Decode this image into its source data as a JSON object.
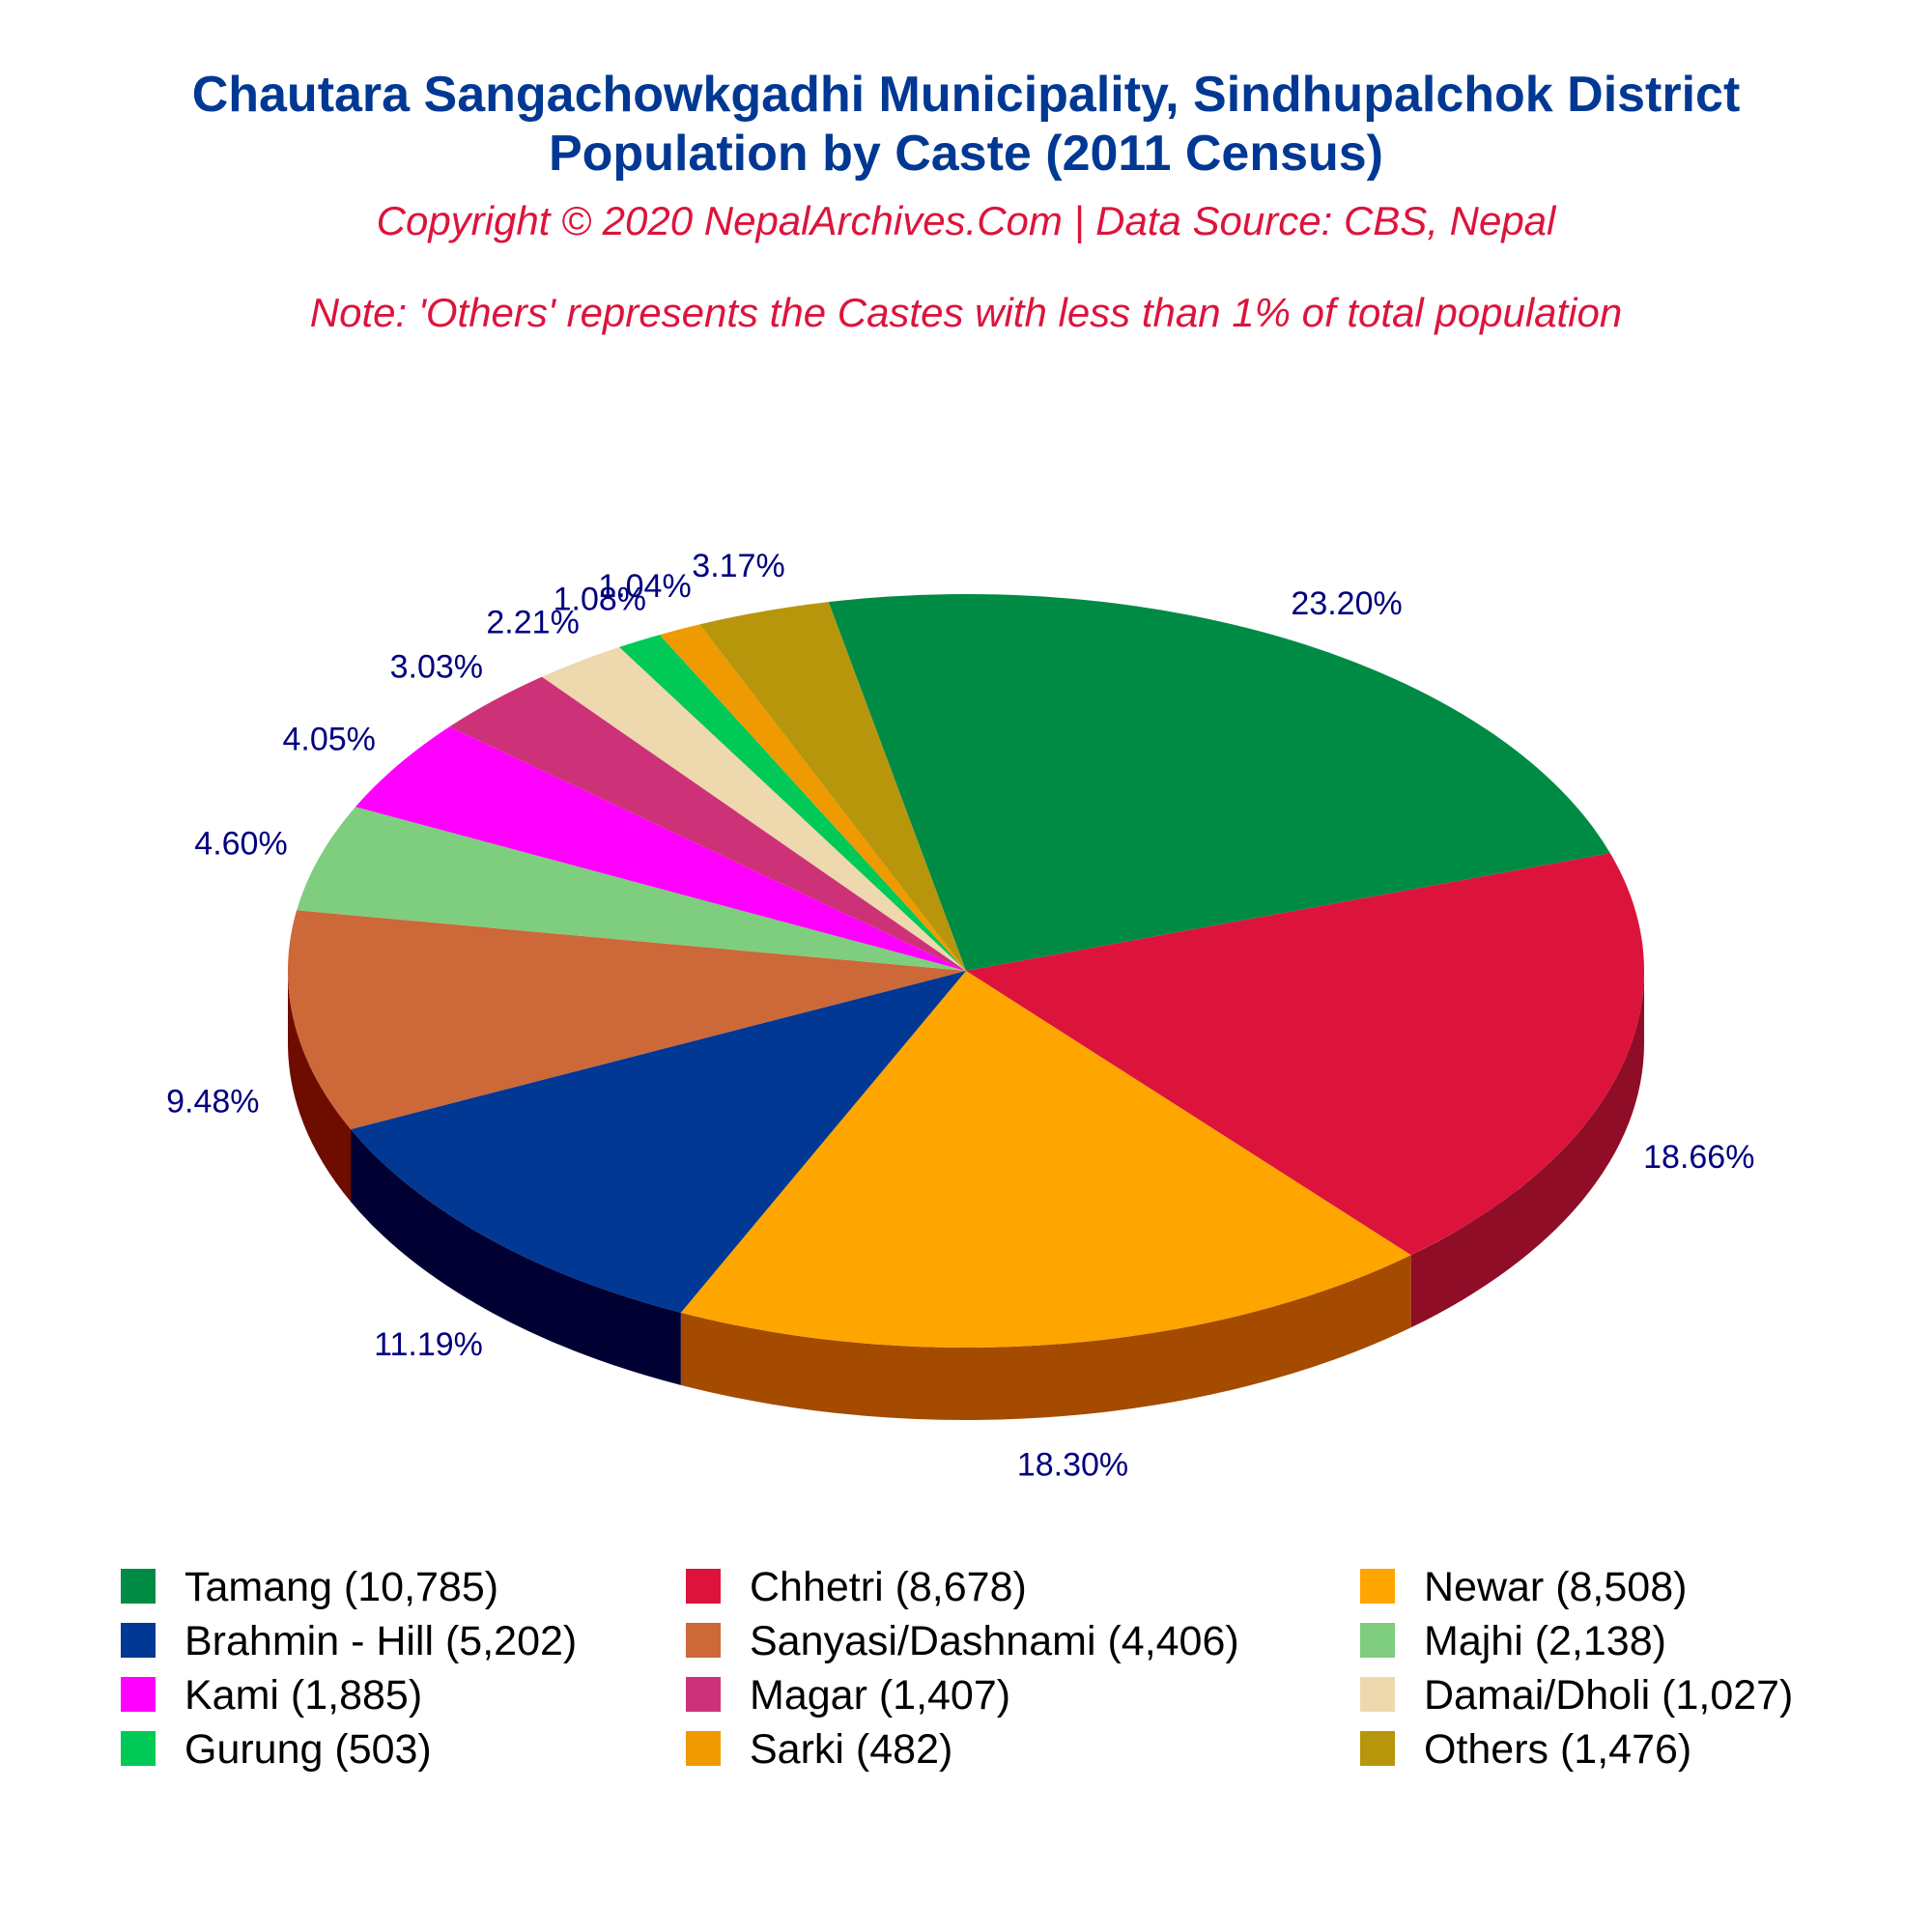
{
  "chart_data": {
    "type": "pie",
    "title_lines": [
      "Chautara Sangachowkgadhi Municipality, Sindhupalchok District",
      "Population by Caste (2011 Census)"
    ],
    "subtitle": "Copyright © 2020 NepalArchives.Com | Data Source: CBS, Nepal",
    "note": "Note: 'Others' represents the Castes with less than 1% of total population",
    "slices": [
      {
        "name": "Tamang",
        "value": 10785,
        "percent_label": "23.20%",
        "legend_label": "Tamang (10,785)",
        "color": "#008B45",
        "side_color": "#005C2D"
      },
      {
        "name": "Chhetri",
        "value": 8678,
        "percent_label": "18.66%",
        "legend_label": "Chhetri (8,678)",
        "color": "#DC143C",
        "side_color": "#8F0D27"
      },
      {
        "name": "Newar",
        "value": 8508,
        "percent_label": "18.30%",
        "legend_label": "Newar (8,508)",
        "color": "#FFA500",
        "side_color": "#A44B00"
      },
      {
        "name": "Brahmin - Hill",
        "value": 5202,
        "percent_label": "11.19%",
        "legend_label": "Brahmin - Hill (5,202)",
        "color": "#003893",
        "side_color": "#000033"
      },
      {
        "name": "Sanyasi/Dashnami",
        "value": 4406,
        "percent_label": "9.48%",
        "legend_label": "Sanyasi/Dashnami (4,406)",
        "color": "#CD6839",
        "side_color": "#6F0C00"
      },
      {
        "name": "Majhi",
        "value": 2138,
        "percent_label": "4.60%",
        "legend_label": "Majhi (2,138)",
        "color": "#7FCD7F",
        "side_color": "#217023"
      },
      {
        "name": "Kami",
        "value": 1885,
        "percent_label": "4.05%",
        "legend_label": "Kami (1,885)",
        "color": "#FF00FF",
        "side_color": "#A500A5"
      },
      {
        "name": "Magar",
        "value": 1407,
        "percent_label": "3.03%",
        "legend_label": "Magar (1,407)",
        "color": "#CD3278",
        "side_color": "#7A1E48"
      },
      {
        "name": "Damai/Dholi",
        "value": 1027,
        "percent_label": "2.21%",
        "legend_label": "Damai/Dholi (1,027)",
        "color": "#EED8AE",
        "side_color": "#9E8E70"
      },
      {
        "name": "Gurung",
        "value": 503,
        "percent_label": "1.08%",
        "legend_label": "Gurung (503)",
        "color": "#00C957",
        "side_color": "#007A35"
      },
      {
        "name": "Sarki",
        "value": 482,
        "percent_label": "1.04%",
        "legend_label": "Sarki (482)",
        "color": "#EE9A00",
        "side_color": "#8F5C00"
      },
      {
        "name": "Others",
        "value": 1476,
        "percent_label": "3.17%",
        "legend_label": "Others (1,476)",
        "color": "#B8960C",
        "side_color": "#6E5A07"
      }
    ],
    "legend_position": "bottom",
    "legend_columns": 3
  },
  "colors": {
    "title": "#003893",
    "subtitle": "#DC143C",
    "percent_label": "#000080"
  }
}
